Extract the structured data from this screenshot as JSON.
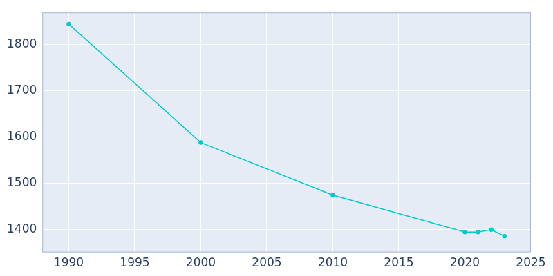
{
  "chart_data": {
    "type": "line",
    "x": [
      1990,
      2000,
      2010,
      2020,
      2021,
      2022,
      2023
    ],
    "values": [
      1845,
      1588,
      1474,
      1394,
      1394,
      1399,
      1385
    ],
    "color": "#00cccc",
    "marker": "circle",
    "xlim": [
      1988,
      2025
    ],
    "xticks": [
      1990,
      1995,
      2000,
      2005,
      2010,
      2015,
      2020,
      2025
    ],
    "ylim": [
      1350,
      1870
    ],
    "yticks": [
      1400,
      1500,
      1600,
      1700,
      1800
    ],
    "grid": true
  }
}
